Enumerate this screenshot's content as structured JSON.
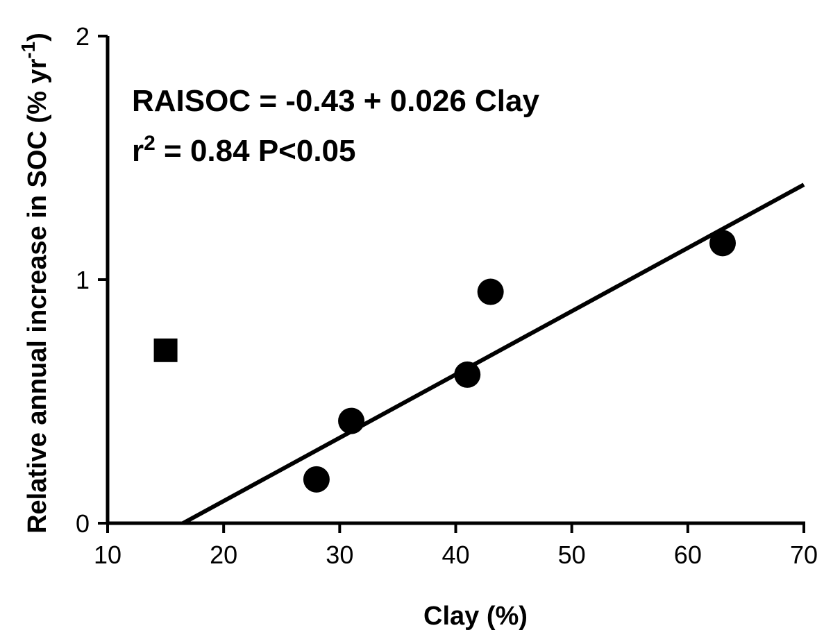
{
  "chart_data": {
    "type": "scatter",
    "xlabel": "Clay (%)",
    "ylabel": {
      "text": "Relative annual increase in SOC (% yr",
      "superscript": "-1",
      "close": ")"
    },
    "xlim": [
      10,
      70
    ],
    "ylim": [
      0,
      2
    ],
    "x_ticks": [
      10,
      20,
      30,
      40,
      50,
      60,
      70
    ],
    "y_ticks": [
      0,
      1,
      2
    ],
    "grid": false,
    "legend": "none",
    "series": [
      {
        "marker": "circle",
        "points": [
          {
            "x": 28,
            "y": 0.18
          },
          {
            "x": 31,
            "y": 0.42
          },
          {
            "x": 41,
            "y": 0.61
          },
          {
            "x": 43,
            "y": 0.95
          },
          {
            "x": 63,
            "y": 1.15
          }
        ]
      },
      {
        "marker": "square",
        "points": [
          {
            "x": 15,
            "y": 0.71
          }
        ]
      }
    ],
    "regression": {
      "intercept": -0.43,
      "slope": 0.026,
      "x_range": [
        16.5,
        70
      ]
    },
    "annotations": {
      "equation": "RAISOC = -0.43 + 0.026 Clay",
      "r_label": "r",
      "r_sup": "2",
      "r_stat": " = 0.84  P<0.05"
    },
    "colors": {
      "marks": "#000000",
      "background": "#ffffff"
    }
  }
}
